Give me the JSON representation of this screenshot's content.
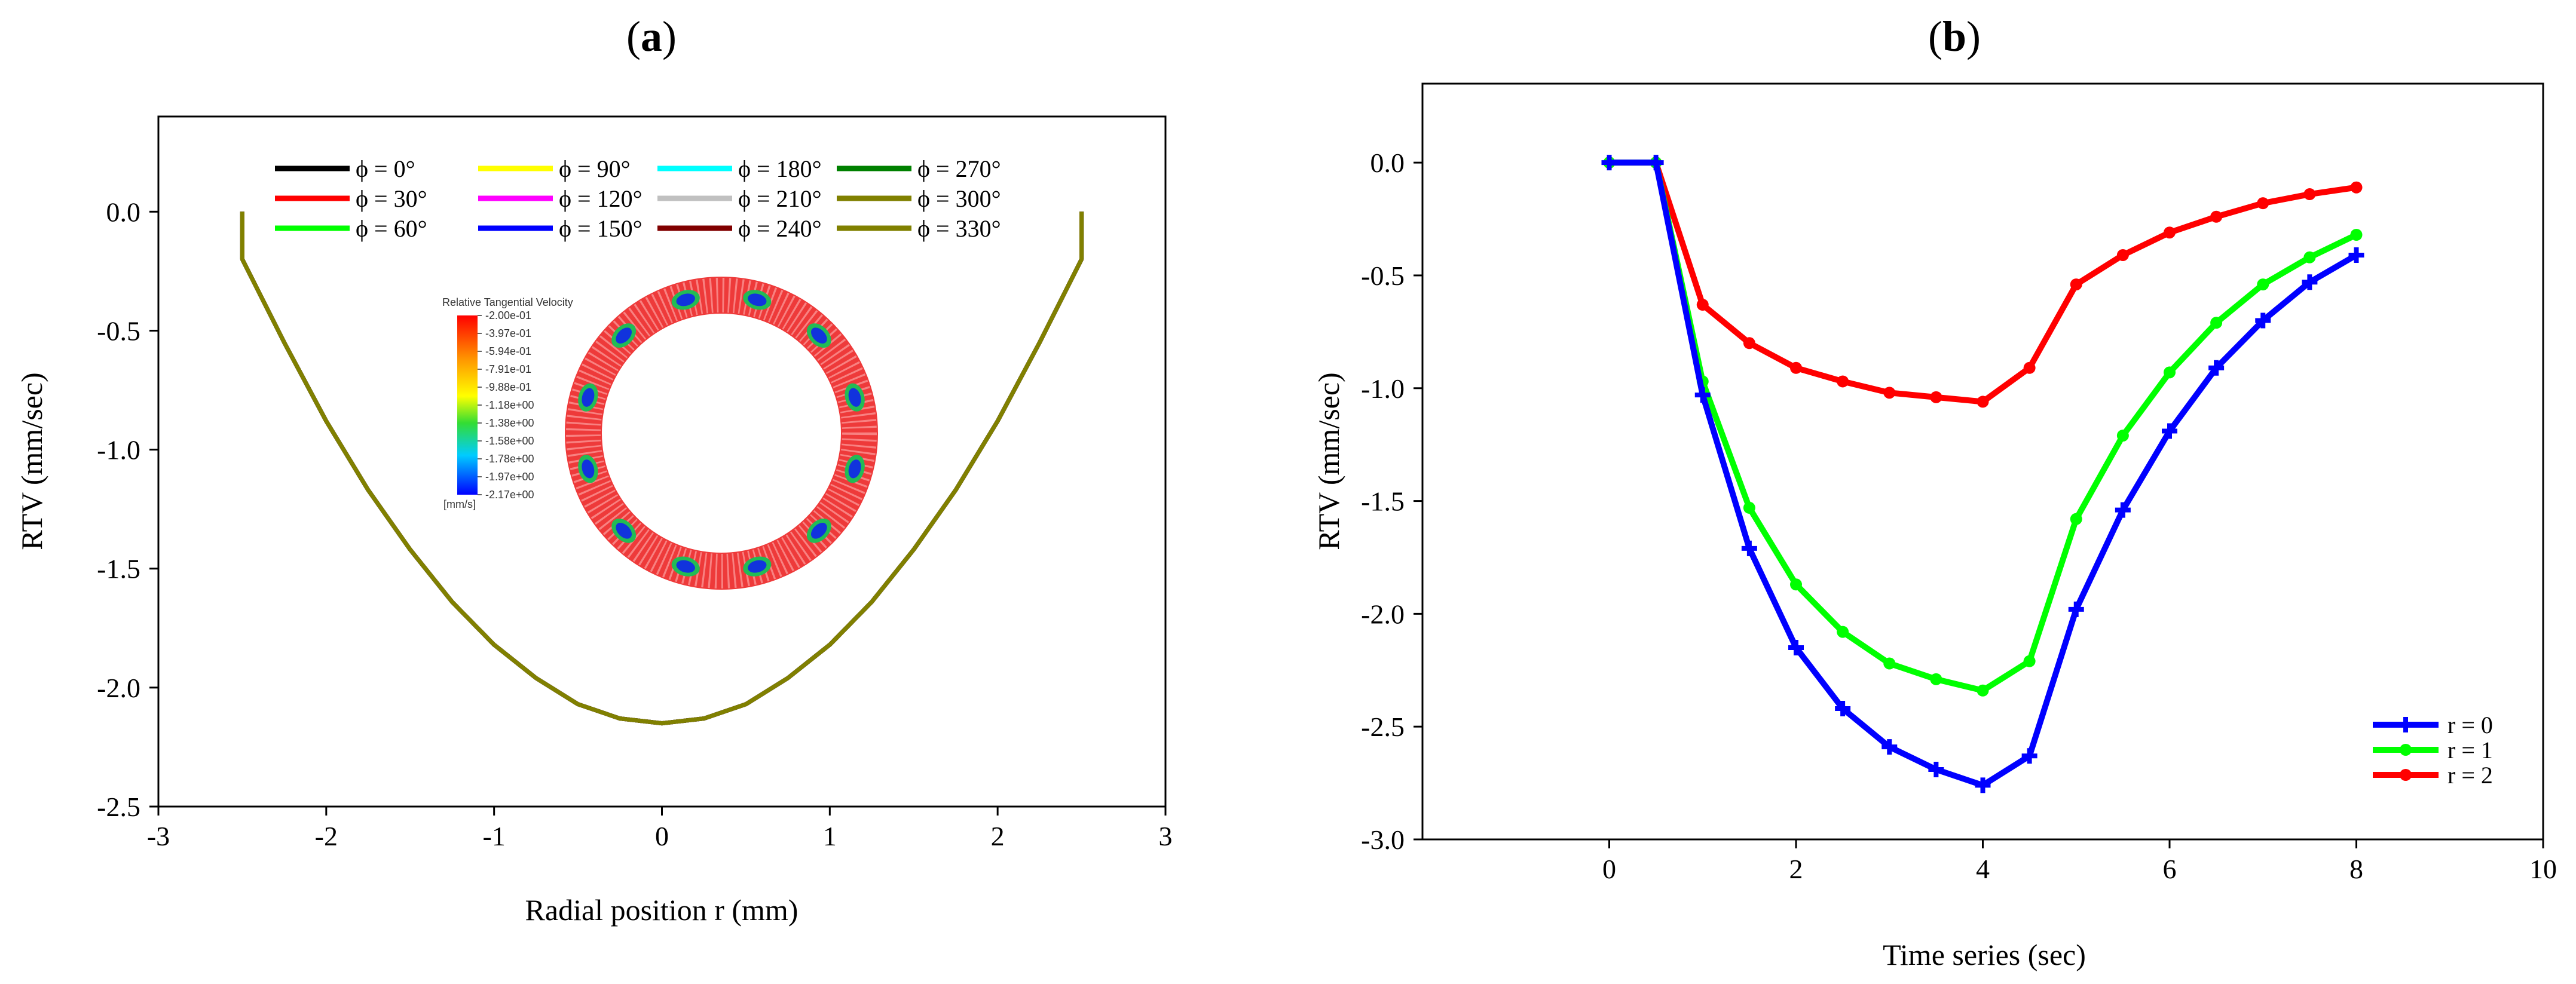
{
  "panels": {
    "a": {
      "label_open": "(",
      "label_letter": "a",
      "label_close": ")"
    },
    "b": {
      "label_open": "(",
      "label_letter": "b",
      "label_close": ")"
    }
  },
  "inset": {
    "title": "Relative Tangential Velocity",
    "unit": "[mm/s]",
    "ticks": [
      "-2.00e-01",
      "-3.97e-01",
      "-5.94e-01",
      "-7.91e-01",
      "-9.88e-01",
      "-1.18e+00",
      "-1.38e+00",
      "-1.58e+00",
      "-1.78e+00",
      "-1.97e+00",
      "-2.17e+00"
    ]
  },
  "chart_data": [
    {
      "id": "a",
      "type": "line",
      "xlabel": "Radial position r (mm)",
      "ylabel": "RTV (mm/sec)",
      "xlim": [
        -3,
        3
      ],
      "ylim": [
        -2.5,
        0.4
      ],
      "xticks": [
        -3,
        -2,
        -1,
        0,
        1,
        2,
        3
      ],
      "yticks": [
        0.0,
        -0.5,
        -1.0,
        -1.5,
        -2.0,
        -2.5
      ],
      "xtick_labels": [
        "-3",
        "-2",
        "-1",
        "0",
        "1",
        "2",
        "3"
      ],
      "ytick_labels": [
        "0.0",
        "-0.5",
        "-1.0",
        "-1.5",
        "-2.0",
        "-2.5"
      ],
      "x": [
        -2.5,
        -2.5,
        -2.25,
        -2.0,
        -1.75,
        -1.5,
        -1.25,
        -1.0,
        -0.75,
        -0.5,
        -0.25,
        0.0,
        0.25,
        0.5,
        0.75,
        1.0,
        1.25,
        1.5,
        1.75,
        2.0,
        2.25,
        2.5,
        2.5
      ],
      "series": [
        {
          "name": "ϕ = 0°",
          "color": "#000000"
        },
        {
          "name": "ϕ = 90°",
          "color": "#ffff00"
        },
        {
          "name": "ϕ = 180°",
          "color": "#00ffff"
        },
        {
          "name": "ϕ = 270°",
          "color": "#008000"
        },
        {
          "name": "ϕ = 30°",
          "color": "#ff0000"
        },
        {
          "name": "ϕ = 120°",
          "color": "#ff00ff"
        },
        {
          "name": "ϕ = 210°",
          "color": "#c0c0c0"
        },
        {
          "name": "ϕ = 300°",
          "color": "#808000"
        },
        {
          "name": "ϕ = 60°",
          "color": "#00ff00"
        },
        {
          "name": "ϕ = 150°",
          "color": "#0000ff"
        },
        {
          "name": "ϕ = 240°",
          "color": "#800000"
        },
        {
          "name": "ϕ = 330°",
          "color": "#808000"
        }
      ],
      "values": [
        0.0,
        -0.2,
        -0.55,
        -0.88,
        -1.17,
        -1.42,
        -1.64,
        -1.82,
        -1.96,
        -2.07,
        -2.13,
        -2.15,
        -2.13,
        -2.07,
        -1.96,
        -1.82,
        -1.64,
        -1.42,
        -1.17,
        -0.88,
        -0.55,
        -0.2,
        0.0
      ]
    },
    {
      "id": "b",
      "type": "line",
      "xlabel": "Time series (sec)",
      "ylabel": "RTV (mm/sec)",
      "xlim": [
        -2.0,
        10
      ],
      "ylim": [
        -3.0,
        0.35
      ],
      "xticks": [
        0,
        2,
        4,
        6,
        8,
        10
      ],
      "yticks": [
        0.0,
        -0.5,
        -1.0,
        -1.5,
        -2.0,
        -2.5,
        -3.0
      ],
      "xtick_labels": [
        "0",
        "2",
        "4",
        "6",
        "8",
        "10"
      ],
      "ytick_labels": [
        "0.0",
        "-0.5",
        "-1.0",
        "-1.5",
        "-2.0",
        "-2.5",
        "-3.0"
      ],
      "x": [
        0,
        0.5,
        1.0,
        1.5,
        2.0,
        2.5,
        3.0,
        3.5,
        4.0,
        4.5,
        5.0,
        5.5,
        6.0,
        6.5,
        7.0,
        7.5,
        8.0
      ],
      "series": [
        {
          "name": "r = 0",
          "color": "#0000ff",
          "marker": "plus",
          "values": [
            0.0,
            0.0,
            -1.03,
            -1.71,
            -2.15,
            -2.42,
            -2.59,
            -2.69,
            -2.76,
            -2.63,
            -1.98,
            -1.54,
            -1.19,
            -0.91,
            -0.7,
            -0.53,
            -0.41
          ]
        },
        {
          "name": "r = 1",
          "color": "#00ff00",
          "marker": "circle",
          "values": [
            0.0,
            0.0,
            -0.97,
            -1.53,
            -1.87,
            -2.08,
            -2.22,
            -2.29,
            -2.34,
            -2.21,
            -1.58,
            -1.21,
            -0.93,
            -0.71,
            -0.54,
            -0.42,
            -0.32
          ]
        },
        {
          "name": "r = 2",
          "color": "#ff0000",
          "marker": "circle",
          "values": [
            0.0,
            0.0,
            -0.63,
            -0.8,
            -0.91,
            -0.97,
            -1.02,
            -1.04,
            -1.06,
            -0.91,
            -0.54,
            -0.41,
            -0.31,
            -0.24,
            -0.18,
            -0.14,
            -0.11
          ]
        }
      ],
      "legend_position": "bottom-right"
    }
  ]
}
